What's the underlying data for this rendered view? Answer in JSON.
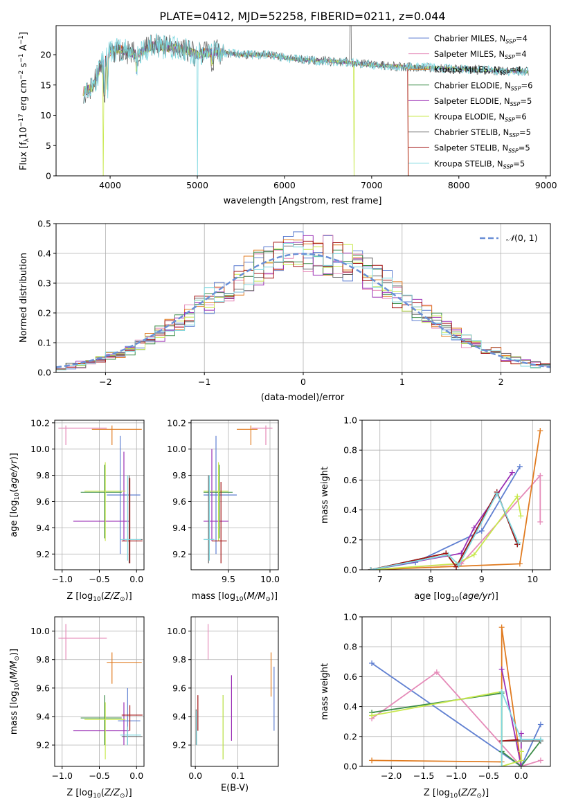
{
  "figure": {
    "title": "PLATE=0412, MJD=52258, FIBERID=0211, z=0.044"
  },
  "colors": {
    "Chabrier MILES": "#5f7fd1",
    "Salpeter MILES": "#e58ab8",
    "Kroupa MILES": "#e07b20",
    "Chabrier ELODIE": "#3e8e4a",
    "Salpeter ELODIE": "#9b30b5",
    "Kroupa ELODIE": "#c8e84e",
    "Chabrier STELIB": "#666666",
    "Salpeter STELIB": "#a31515",
    "Kroupa STELIB": "#7fd8e0"
  },
  "chart_data": [
    {
      "id": "spectrum",
      "type": "line",
      "xlabel": "wavelength [Angstrom, rest frame]",
      "ylabel": "Flux [fλ10⁻¹⁷ erg cm⁻² s⁻¹ A⁻¹]",
      "xlim": [
        3380,
        9050
      ],
      "ylim": [
        0,
        24.8
      ],
      "xticks": [
        4000,
        5000,
        6000,
        7000,
        8000,
        9000
      ],
      "yticks": [
        0,
        5,
        10,
        15,
        20
      ],
      "grid": false,
      "legend_position": "top-right",
      "legend": [
        {
          "name": "Chabrier MILES",
          "sub": "SSP",
          "n": "4"
        },
        {
          "name": "Salpeter MILES",
          "sub": "SSP",
          "n": "4"
        },
        {
          "name": "Kroupa MILES",
          "sub": "SSP",
          "n": "4"
        },
        {
          "name": "Chabrier ELODIE",
          "sub": "SSP",
          "n": "6"
        },
        {
          "name": "Salpeter ELODIE",
          "sub": "SSP",
          "n": "5"
        },
        {
          "name": "Kroupa ELODIE",
          "sub": "SSP",
          "n": "6"
        },
        {
          "name": "Chabrier STELIB",
          "sub": "SSP",
          "n": "5"
        },
        {
          "name": "Salpeter STELIB",
          "sub": "SSP",
          "n": "5"
        },
        {
          "name": "Kroupa STELIB",
          "sub": "SSP",
          "n": "5"
        }
      ],
      "spectrum_profile": [
        [
          3700,
          14.0
        ],
        [
          3800,
          14.5
        ],
        [
          3900,
          18.5
        ],
        [
          3950,
          19.0
        ],
        [
          4000,
          20.5
        ],
        [
          4100,
          21.0
        ],
        [
          4300,
          20.0
        ],
        [
          4500,
          21.5
        ],
        [
          4800,
          21.0
        ],
        [
          5000,
          20.0
        ],
        [
          5200,
          20.5
        ],
        [
          5500,
          20.0
        ],
        [
          5800,
          20.0
        ],
        [
          6100,
          19.3
        ],
        [
          6400,
          19.0
        ],
        [
          6700,
          18.8
        ],
        [
          7000,
          18.3
        ],
        [
          7400,
          18.0
        ],
        [
          7800,
          17.8
        ],
        [
          8200,
          17.5
        ],
        [
          8600,
          17.3
        ],
        [
          8800,
          17.2
        ]
      ],
      "cutoffs": [
        {
          "model": "Kroupa ELODIE",
          "x": 3920
        },
        {
          "model": "Kroupa STELIB",
          "x": 5000
        },
        {
          "model": "Kroupa ELODIE",
          "x": 6800
        },
        {
          "model": "Kroupa MILES",
          "x": 7420
        },
        {
          "model": "Salpeter STELIB",
          "x": 7420
        }
      ]
    },
    {
      "id": "residuals",
      "type": "line",
      "xlabel": "(data-model)/error",
      "ylabel": "Normed distribution",
      "xlim": [
        -2.5,
        2.5
      ],
      "ylim": [
        0,
        0.5
      ],
      "xticks": [
        -2,
        -1,
        0,
        1,
        2
      ],
      "yticks": [
        0.0,
        0.1,
        0.2,
        0.3,
        0.4,
        0.5
      ],
      "grid": true,
      "legend_position": "top-right",
      "legend": [
        {
          "name": "N(0,1)",
          "label_main": "𝒩",
          "label_tail": "(0, 1)"
        }
      ],
      "gaussian": {
        "mean": 0,
        "sigma": 1
      }
    },
    {
      "id": "age_vs_Z",
      "type": "scatter",
      "xlabel": "Z [log10(Z/Z⊙)]",
      "ylabel": "age [log10(age/yr)]",
      "xlim": [
        -1.1,
        0.1
      ],
      "ylim": [
        9.08,
        10.22
      ],
      "xticks": [
        -1.0,
        -0.5,
        0.0
      ],
      "yticks": [
        9.2,
        9.4,
        9.6,
        9.8,
        10.0,
        10.2
      ],
      "grid": true,
      "points": [
        {
          "model": "Chabrier MILES",
          "x": -0.22,
          "y": 9.65,
          "xlo": -0.4,
          "xhi": 0.05,
          "ylo": 9.2,
          "yhi": 10.1
        },
        {
          "model": "Salpeter MILES",
          "x": -0.95,
          "y": 10.16,
          "xlo": -1.05,
          "xhi": -0.4,
          "ylo": 10.03,
          "yhi": 10.18
        },
        {
          "model": "Kroupa MILES",
          "x": -0.33,
          "y": 10.15,
          "xlo": -0.6,
          "xhi": 0.07,
          "ylo": 10.03,
          "yhi": 10.18
        },
        {
          "model": "Chabrier ELODIE",
          "x": -0.43,
          "y": 9.67,
          "xlo": -0.75,
          "xhi": -0.2,
          "ylo": 9.32,
          "yhi": 9.88
        },
        {
          "model": "Salpeter ELODIE",
          "x": -0.17,
          "y": 9.45,
          "xlo": -0.85,
          "xhi": -0.1,
          "ylo": 9.3,
          "yhi": 9.98
        },
        {
          "model": "Kroupa ELODIE",
          "x": -0.42,
          "y": 9.68,
          "xlo": -0.7,
          "xhi": -0.15,
          "ylo": 9.3,
          "yhi": 9.9
        },
        {
          "model": "Chabrier STELIB",
          "x": -0.1,
          "y": 9.31,
          "xlo": -0.2,
          "xhi": 0.08,
          "ylo": 9.13,
          "yhi": 9.8
        },
        {
          "model": "Salpeter STELIB",
          "x": -0.09,
          "y": 9.3,
          "xlo": -0.2,
          "xhi": 0.08,
          "ylo": 9.13,
          "yhi": 9.78
        },
        {
          "model": "Kroupa STELIB",
          "x": -0.12,
          "y": 9.31,
          "xlo": -0.22,
          "xhi": 0.06,
          "ylo": 9.15,
          "yhi": 9.8
        }
      ]
    },
    {
      "id": "age_vs_mass",
      "type": "scatter",
      "xlabel": "mass [log10(M/M⊙)]",
      "ylabel": "",
      "xlim": [
        9.05,
        10.1
      ],
      "ylim": [
        9.08,
        10.22
      ],
      "xticks": [
        9.5,
        10.0
      ],
      "yticks": [
        9.2,
        9.4,
        9.6,
        9.8,
        10.0,
        10.2
      ],
      "grid": true,
      "points": [
        {
          "model": "Chabrier MILES",
          "x": 9.35,
          "y": 9.65,
          "xlo": 9.2,
          "xhi": 9.6,
          "ylo": 9.2,
          "yhi": 10.1
        },
        {
          "model": "Salpeter MILES",
          "x": 9.95,
          "y": 10.16,
          "xlo": 9.78,
          "xhi": 10.03,
          "ylo": 10.03,
          "yhi": 10.18
        },
        {
          "model": "Kroupa MILES",
          "x": 9.77,
          "y": 10.15,
          "xlo": 9.6,
          "xhi": 9.85,
          "ylo": 10.03,
          "yhi": 10.18
        },
        {
          "model": "Chabrier ELODIE",
          "x": 9.39,
          "y": 9.67,
          "xlo": 9.2,
          "xhi": 9.55,
          "ylo": 9.32,
          "yhi": 9.88
        },
        {
          "model": "Salpeter ELODIE",
          "x": 9.3,
          "y": 9.45,
          "xlo": 9.2,
          "xhi": 9.5,
          "ylo": 9.3,
          "yhi": 10.0
        },
        {
          "model": "Kroupa ELODIE",
          "x": 9.38,
          "y": 9.68,
          "xlo": 9.2,
          "xhi": 9.5,
          "ylo": 9.3,
          "yhi": 9.9
        },
        {
          "model": "Chabrier STELIB",
          "x": 9.26,
          "y": 9.31,
          "xlo": 9.2,
          "xhi": 9.33,
          "ylo": 9.13,
          "yhi": 9.8
        },
        {
          "model": "Salpeter STELIB",
          "x": 9.41,
          "y": 9.3,
          "xlo": 9.3,
          "xhi": 9.48,
          "ylo": 9.13,
          "yhi": 9.75
        },
        {
          "model": "Kroupa STELIB",
          "x": 9.27,
          "y": 9.31,
          "xlo": 9.2,
          "xhi": 9.33,
          "ylo": 9.15,
          "yhi": 9.8
        }
      ]
    },
    {
      "id": "massweight_vs_age",
      "type": "line",
      "xlabel": "age [log10(age/yr)]",
      "ylabel": "mass weight",
      "xlim": [
        6.65,
        10.35
      ],
      "ylim": [
        0,
        1.0
      ],
      "xticks": [
        7,
        8,
        9,
        10
      ],
      "yticks": [
        0.0,
        0.2,
        0.4,
        0.6,
        0.8,
        1.0
      ],
      "grid": true,
      "series": [
        {
          "name": "Chabrier MILES",
          "x": [
            6.82,
            7.7,
            9.0,
            9.75
          ],
          "y": [
            0.0,
            0.05,
            0.26,
            0.69
          ]
        },
        {
          "name": "Salpeter MILES",
          "x": [
            6.82,
            8.6,
            10.15,
            10.15
          ],
          "y": [
            0.0,
            0.04,
            0.63,
            0.32
          ]
        },
        {
          "name": "Kroupa MILES",
          "x": [
            6.82,
            9.75,
            10.15
          ],
          "y": [
            0.0,
            0.04,
            0.93
          ]
        },
        {
          "name": "Chabrier ELODIE",
          "x": [
            6.82,
            8.3,
            8.5,
            9.3,
            9.7
          ],
          "y": [
            0.0,
            0.11,
            0.02,
            0.52,
            0.17
          ]
        },
        {
          "name": "Salpeter ELODIE",
          "x": [
            6.82,
            8.6,
            8.85,
            9.6
          ],
          "y": [
            0.0,
            0.11,
            0.28,
            0.65
          ]
        },
        {
          "name": "Kroupa ELODIE",
          "x": [
            6.82,
            8.5,
            8.85,
            9.7,
            9.77
          ],
          "y": [
            0.0,
            0.04,
            0.1,
            0.49,
            0.36
          ]
        },
        {
          "name": "Chabrier STELIB",
          "x": [
            6.82,
            8.3,
            8.5,
            9.3,
            9.7
          ],
          "y": [
            0.0,
            0.11,
            0.02,
            0.52,
            0.17
          ]
        },
        {
          "name": "Salpeter STELIB",
          "x": [
            6.82,
            8.3,
            8.5,
            9.3,
            9.7
          ],
          "y": [
            0.0,
            0.11,
            0.02,
            0.52,
            0.17
          ]
        },
        {
          "name": "Kroupa STELIB",
          "x": [
            6.82,
            8.35,
            8.55,
            9.3,
            9.72
          ],
          "y": [
            0.0,
            0.1,
            0.03,
            0.51,
            0.18
          ]
        }
      ]
    },
    {
      "id": "mass_vs_Z",
      "type": "scatter",
      "xlabel": "Z [log10(Z/Z⊙)]",
      "ylabel": "mass [log10(M/M⊙)]",
      "xlim": [
        -1.1,
        0.1
      ],
      "ylim": [
        9.05,
        10.1
      ],
      "xticks": [
        -1.0,
        -0.5,
        0.0
      ],
      "yticks": [
        9.2,
        9.4,
        9.6,
        9.8,
        10.0
      ],
      "grid": true,
      "points": [
        {
          "model": "Chabrier MILES",
          "x": -0.12,
          "y": 9.37,
          "xlo": -0.25,
          "xhi": 0.05,
          "ylo": 9.2,
          "yhi": 9.6
        },
        {
          "model": "Salpeter MILES",
          "x": -0.95,
          "y": 9.95,
          "xlo": -1.05,
          "xhi": -0.4,
          "ylo": 9.8,
          "yhi": 10.05
        },
        {
          "model": "Kroupa MILES",
          "x": -0.33,
          "y": 9.78,
          "xlo": -0.4,
          "xhi": 0.07,
          "ylo": 9.63,
          "yhi": 9.85
        },
        {
          "model": "Chabrier ELODIE",
          "x": -0.43,
          "y": 9.39,
          "xlo": -0.75,
          "xhi": -0.2,
          "ylo": 9.2,
          "yhi": 9.55
        },
        {
          "model": "Salpeter ELODIE",
          "x": -0.17,
          "y": 9.3,
          "xlo": -0.85,
          "xhi": -0.1,
          "ylo": 9.2,
          "yhi": 9.5
        },
        {
          "model": "Kroupa ELODIE",
          "x": -0.42,
          "y": 9.38,
          "xlo": -0.7,
          "xhi": -0.15,
          "ylo": 9.1,
          "yhi": 9.5
        },
        {
          "model": "Chabrier STELIB",
          "x": -0.12,
          "y": 9.26,
          "xlo": -0.2,
          "xhi": 0.08,
          "ylo": 9.2,
          "yhi": 9.33
        },
        {
          "model": "Salpeter STELIB",
          "x": -0.09,
          "y": 9.41,
          "xlo": -0.2,
          "xhi": 0.08,
          "ylo": 9.3,
          "yhi": 9.48
        },
        {
          "model": "Kroupa STELIB",
          "x": -0.12,
          "y": 9.27,
          "xlo": -0.22,
          "xhi": 0.06,
          "ylo": 9.2,
          "yhi": 9.33
        }
      ]
    },
    {
      "id": "mass_vs_EBV",
      "type": "scatter",
      "xlabel": "E(B-V)",
      "ylabel": "",
      "xlim": [
        -0.01,
        0.195
      ],
      "ylim": [
        9.05,
        10.1
      ],
      "xticks": [
        0.0,
        0.1
      ],
      "yticks": [
        9.2,
        9.4,
        9.6,
        9.8,
        10.0
      ],
      "grid": true,
      "points": [
        {
          "model": "Chabrier MILES",
          "x": 0.185,
          "ylo": 9.3,
          "yhi": 9.75
        },
        {
          "model": "Salpeter MILES",
          "x": 0.03,
          "ylo": 9.8,
          "yhi": 10.05
        },
        {
          "model": "Kroupa MILES",
          "x": 0.178,
          "ylo": 9.54,
          "yhi": 9.85
        },
        {
          "model": "Chabrier ELODIE",
          "x": 0.065,
          "ylo": 9.1,
          "yhi": 9.55
        },
        {
          "model": "Salpeter ELODIE",
          "x": 0.085,
          "ylo": 9.23,
          "yhi": 9.69
        },
        {
          "model": "Kroupa ELODIE",
          "x": 0.065,
          "ylo": 9.1,
          "yhi": 9.55
        },
        {
          "model": "Chabrier STELIB",
          "x": 0.002,
          "ylo": 9.2,
          "yhi": 9.45
        },
        {
          "model": "Salpeter STELIB",
          "x": 0.006,
          "ylo": 9.3,
          "yhi": 9.55
        },
        {
          "model": "Kroupa STELIB",
          "x": 0.003,
          "ylo": 9.2,
          "yhi": 9.44
        }
      ]
    },
    {
      "id": "massweight_vs_Z",
      "type": "line",
      "xlabel": "Z [log10(Z/Z⊙)]",
      "ylabel": "mass weight",
      "xlim": [
        -2.45,
        0.45
      ],
      "ylim": [
        0,
        1.0
      ],
      "xticks": [
        -2.0,
        -1.5,
        -1.0,
        -0.5,
        0.0
      ],
      "yticks": [
        0.0,
        0.2,
        0.4,
        0.6,
        0.8,
        1.0
      ],
      "grid": true,
      "series": [
        {
          "name": "Chabrier MILES",
          "x": [
            -2.3,
            0.0,
            0.3
          ],
          "y": [
            0.69,
            0.0,
            0.28
          ]
        },
        {
          "name": "Salpeter MILES",
          "x": [
            -2.3,
            -1.3,
            0.0,
            0.3
          ],
          "y": [
            0.32,
            0.63,
            0.0,
            0.04
          ]
        },
        {
          "name": "Kroupa MILES",
          "x": [
            -2.3,
            -0.3,
            -0.3,
            0.0
          ],
          "y": [
            0.04,
            0.03,
            0.93,
            0.0
          ]
        },
        {
          "name": "Chabrier ELODIE",
          "x": [
            -2.3,
            -0.3,
            -0.3,
            0.0,
            0.3
          ],
          "y": [
            0.36,
            0.49,
            0.1,
            0.0,
            0.17
          ]
        },
        {
          "name": "Salpeter ELODIE",
          "x": [
            -0.3,
            0.0,
            0.0
          ],
          "y": [
            0.65,
            0.0,
            0.22
          ]
        },
        {
          "name": "Kroupa ELODIE",
          "x": [
            -2.3,
            -0.3,
            -0.3,
            0.0,
            0.0
          ],
          "y": [
            0.34,
            0.5,
            0.0,
            0.04,
            0.1
          ]
        },
        {
          "name": "Chabrier STELIB",
          "x": [
            -0.3,
            0.0,
            0.3
          ],
          "y": [
            0.17,
            0.17,
            0.17
          ]
        },
        {
          "name": "Salpeter STELIB",
          "x": [
            -0.3,
            0.0
          ],
          "y": [
            0.17,
            0.18
          ]
        },
        {
          "name": "Kroupa STELIB",
          "x": [
            -0.3,
            -0.3,
            0.0,
            0.3
          ],
          "y": [
            0.0,
            0.5,
            0.18,
            0.18
          ]
        }
      ]
    }
  ]
}
